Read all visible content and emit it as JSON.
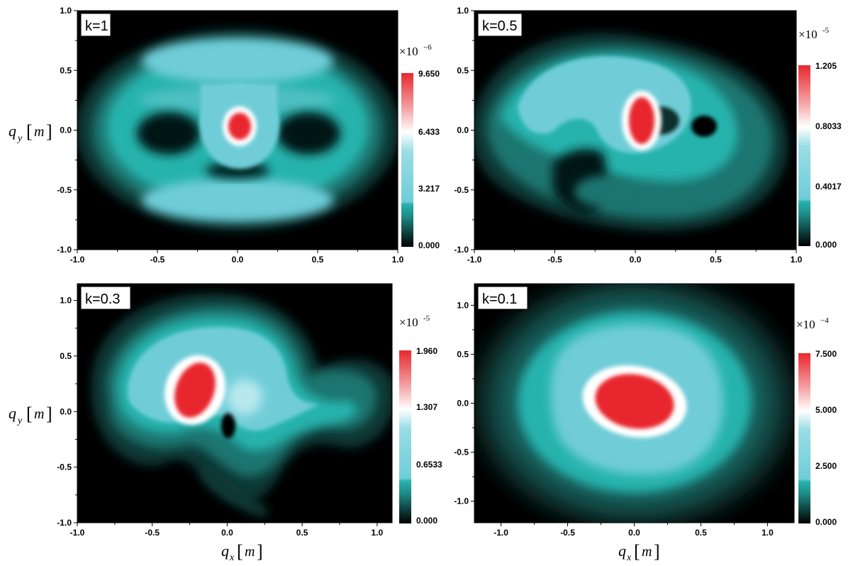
{
  "axis_labels": {
    "qx": "q",
    "qx_sub": "x",
    "qy": "q",
    "qy_sub": "y",
    "unit": "m",
    "bracket_open": "[",
    "bracket_close": "]"
  },
  "colors": {
    "background": "#000000",
    "teal": "#26b3ad",
    "light_cyan": "#7ad1dc",
    "white": "#ffffff",
    "red": "#e8282e"
  },
  "chart_data": [
    {
      "type": "heatmap",
      "panel_label": "k=1",
      "xlim": [
        -1.0,
        1.0
      ],
      "ylim": [
        -1.0,
        1.0
      ],
      "x_ticks": [
        "-1.0",
        "-0.5",
        "0.0",
        "0.5",
        "1.0"
      ],
      "y_ticks": [
        "-1.0",
        "-0.5",
        "0.0",
        "0.5",
        "1.0"
      ],
      "colorbar": {
        "multiplier": "×10",
        "exponent": "−6",
        "labels": [
          "9.650",
          "6.433",
          "3.217",
          "0.000"
        ],
        "min": 0.0,
        "max": 9.65
      }
    },
    {
      "type": "heatmap",
      "panel_label": "k=0.5",
      "xlim": [
        -1.0,
        1.0
      ],
      "ylim": [
        -1.0,
        1.0
      ],
      "x_ticks": [
        "-1.0",
        "-0.5",
        "0.0",
        "0.5",
        "1.0"
      ],
      "y_ticks": [
        "-1.0",
        "-0.5",
        "0.0",
        "0.5",
        "1.0"
      ],
      "colorbar": {
        "multiplier": "×10",
        "exponent": "-5",
        "labels": [
          "1.205",
          "0.8033",
          "0.4017",
          "0.000"
        ],
        "min": 0.0,
        "max": 1.205
      }
    },
    {
      "type": "heatmap",
      "panel_label": "k=0.3",
      "xlim": [
        -1.0,
        1.1
      ],
      "ylim": [
        -1.0,
        1.15
      ],
      "x_ticks": [
        "-1.0",
        "-0.5",
        "0.0",
        "0.5",
        "1.0"
      ],
      "y_ticks": [
        "-1.0",
        "-0.5",
        "0.0",
        "0.5",
        "1.0"
      ],
      "colorbar": {
        "multiplier": "×10",
        "exponent": "-5",
        "labels": [
          "1.960",
          "1.307",
          "0.6533",
          "0.000"
        ],
        "min": 0.0,
        "max": 1.96
      }
    },
    {
      "type": "heatmap",
      "panel_label": "k=0.1",
      "xlim": [
        -1.2,
        1.2
      ],
      "ylim": [
        -1.22,
        1.22
      ],
      "x_ticks": [
        "-1.0",
        "-0.5",
        "0.0",
        "0.5",
        "1.0"
      ],
      "y_ticks": [
        "-1.0",
        "-0.5",
        "0.0",
        "0.5",
        "1.0"
      ],
      "colorbar": {
        "multiplier": "×10",
        "exponent": "−4",
        "labels": [
          "7.500",
          "5.000",
          "2.500",
          "0.000"
        ],
        "min": 0.0,
        "max": 7.5
      }
    }
  ]
}
